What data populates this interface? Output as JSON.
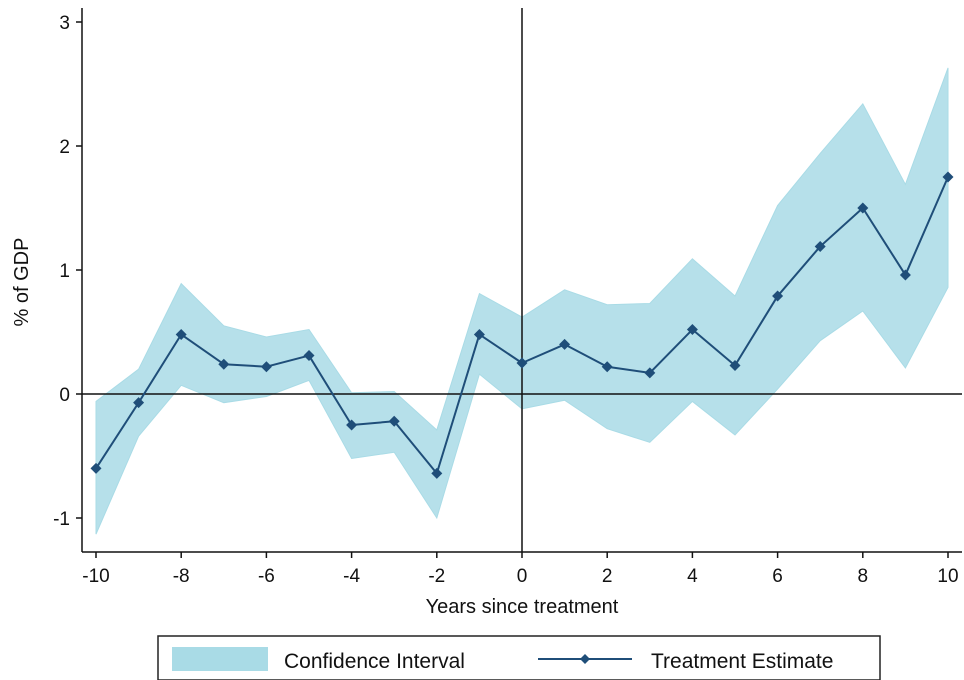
{
  "chart_data": {
    "type": "line",
    "title": "",
    "xlabel": "Years since treatment",
    "ylabel": "% of GDP",
    "xlim": [
      -10,
      10
    ],
    "ylim": [
      -1.25,
      3.1
    ],
    "x_ticks": [
      -10,
      -8,
      -6,
      -4,
      -2,
      0,
      2,
      4,
      6,
      8,
      10
    ],
    "y_ticks": [
      -1,
      0,
      1,
      2,
      3
    ],
    "reference_lines": {
      "x": 0,
      "y": 0
    },
    "grid": false,
    "legend_position": "bottom",
    "x": [
      -10,
      -9,
      -8,
      -7,
      -6,
      -5,
      -4,
      -3,
      -2,
      -1,
      0,
      1,
      2,
      3,
      4,
      5,
      6,
      7,
      8,
      9,
      10
    ],
    "series": [
      {
        "name": "Confidence Interval",
        "kind": "band",
        "color": "#a9dbe6",
        "lower": [
          -1.13,
          -0.34,
          0.07,
          -0.07,
          -0.02,
          0.11,
          -0.52,
          -0.47,
          -1.0,
          0.16,
          -0.12,
          -0.05,
          -0.28,
          -0.39,
          -0.06,
          -0.33,
          0.04,
          0.43,
          0.67,
          0.21,
          0.86
        ],
        "upper": [
          -0.06,
          0.2,
          0.89,
          0.55,
          0.46,
          0.52,
          0.01,
          0.02,
          -0.29,
          0.81,
          0.62,
          0.84,
          0.72,
          0.73,
          1.09,
          0.79,
          1.52,
          1.94,
          2.34,
          1.69,
          2.63
        ]
      },
      {
        "name": "Treatment Estimate",
        "kind": "line",
        "color": "#1f4e79",
        "marker": "diamond",
        "values": [
          -0.6,
          -0.07,
          0.48,
          0.24,
          0.22,
          0.31,
          -0.25,
          -0.22,
          -0.64,
          0.48,
          0.25,
          0.4,
          0.22,
          0.17,
          0.52,
          0.23,
          0.79,
          1.19,
          1.5,
          0.96,
          1.75
        ]
      }
    ]
  }
}
